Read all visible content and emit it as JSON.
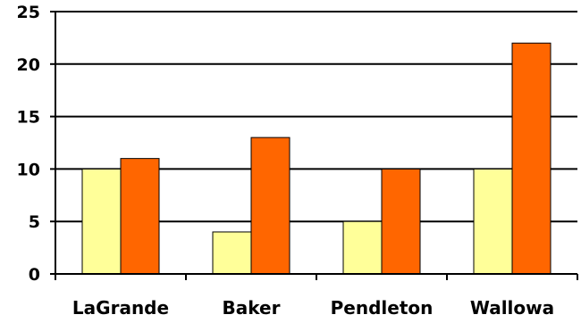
{
  "chart_data": {
    "type": "bar",
    "categories": [
      "LaGrande",
      "Baker",
      "Pendleton",
      "Wallowa"
    ],
    "series": [
      {
        "color": "#FFFF99",
        "values": [
          10,
          4,
          5,
          10
        ]
      },
      {
        "color": "#FF6600",
        "values": [
          11,
          13,
          10,
          22
        ]
      }
    ],
    "yticks": [
      "0",
      "5",
      "10",
      "15",
      "20",
      "25"
    ],
    "ylim": [
      0,
      25
    ],
    "grid": true,
    "legend": "none",
    "title": "",
    "xlabel": "",
    "ylabel": ""
  }
}
